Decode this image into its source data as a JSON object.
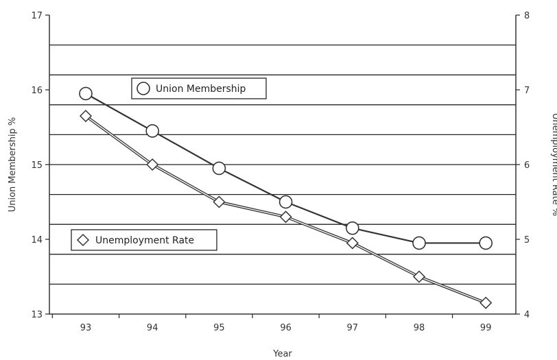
{
  "chart_data": {
    "type": "line",
    "title": "",
    "xlabel": "Year",
    "ylabel_left": "Union Membership %",
    "ylabel_right": "Unemployment Rate %",
    "categories": [
      "93",
      "94",
      "95",
      "96",
      "97",
      "98",
      "99"
    ],
    "ylim_left": [
      13,
      17
    ],
    "ylim_right": [
      4,
      8
    ],
    "yticks_left": [
      "13",
      "14",
      "15",
      "16",
      "17"
    ],
    "yticks_right": [
      "4",
      "5",
      "6",
      "7",
      "8"
    ],
    "grid": true,
    "series": [
      {
        "name": "Union Membership",
        "axis": "left",
        "marker": "circle",
        "values": [
          15.95,
          15.45,
          14.95,
          14.5,
          14.15,
          13.95,
          13.95
        ]
      },
      {
        "name": "Unemployment Rate",
        "axis": "right",
        "marker": "diamond",
        "values": [
          6.65,
          6.0,
          5.5,
          5.3,
          4.95,
          4.5,
          4.15
        ]
      }
    ],
    "colors": {
      "line": "#333333",
      "grid": "#222222",
      "marker_fill": "#ffffff"
    }
  }
}
